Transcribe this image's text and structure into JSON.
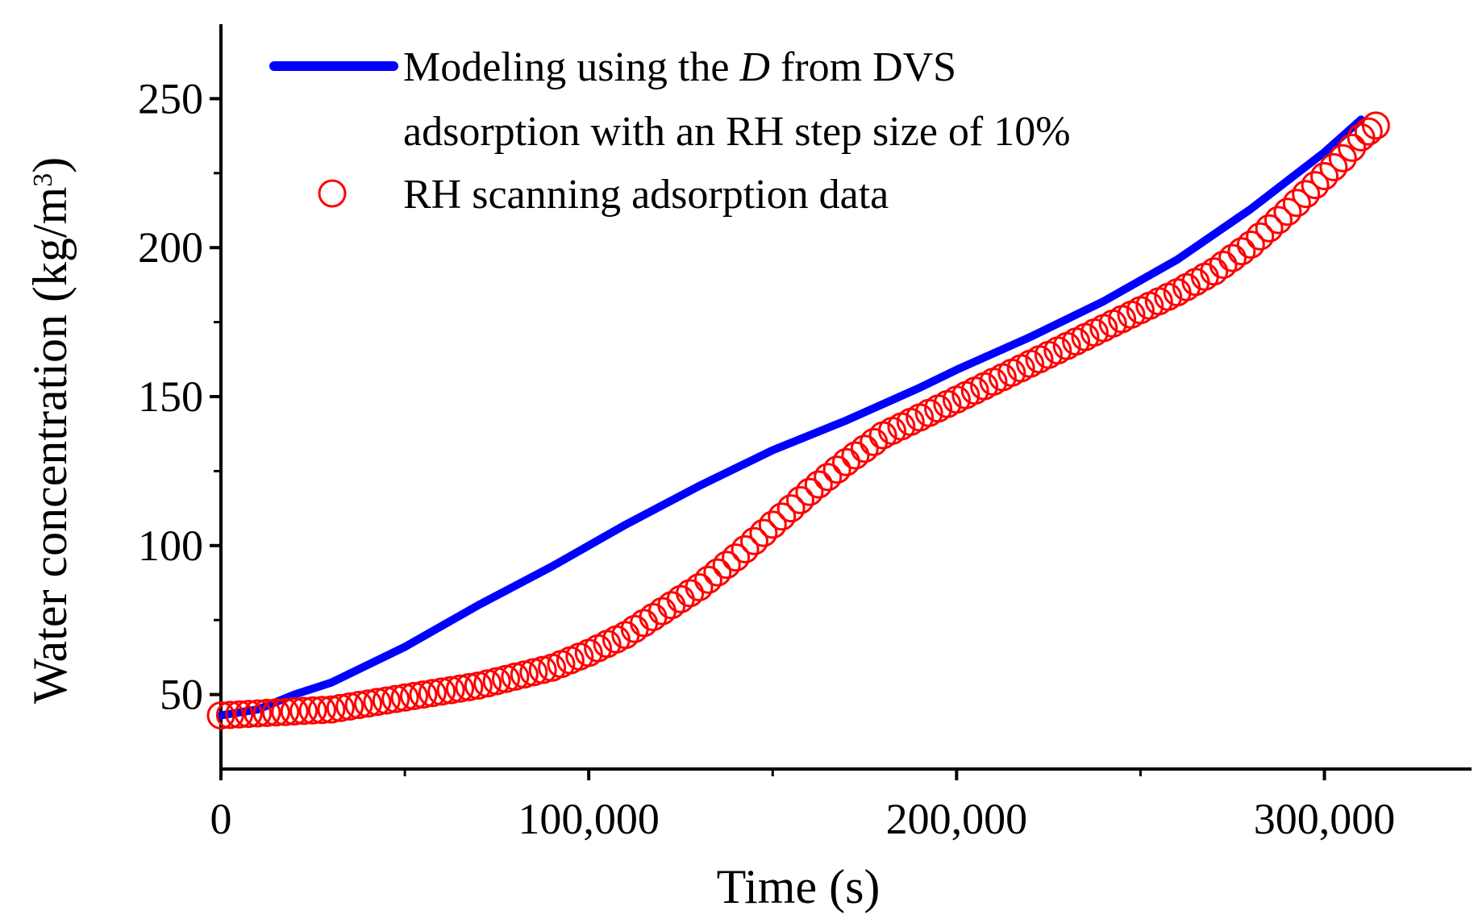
{
  "chart_data": {
    "type": "line",
    "title": "",
    "xlabel": "Time (s)",
    "ylabel_main": "Water concentration (kg/m",
    "ylabel_sup": "3",
    "ylabel_close": ")",
    "xlim": [
      0,
      340000
    ],
    "ylim": [
      25,
      275
    ],
    "x_ticks": [
      0,
      100000,
      200000,
      300000
    ],
    "x_tick_labels": [
      "0",
      "100,000",
      "200,000",
      "300,000"
    ],
    "x_minor_ticks": [
      50000,
      150000,
      250000
    ],
    "y_ticks": [
      50,
      100,
      150,
      200,
      250
    ],
    "y_tick_labels": [
      "50",
      "100",
      "150",
      "200",
      "250"
    ],
    "y_minor_ticks": [
      75,
      125,
      175,
      225
    ],
    "legend": {
      "placement": "top-left",
      "line1_pre": "Modeling using the ",
      "line1_italic": "D",
      "line1_post": " from DVS",
      "line2": "adsorption with an RH step size of 10%",
      "marker_label": "RH scanning adsorption data"
    },
    "series": [
      {
        "name": "Modeling using the D from DVS adsorption with an RH step size of 10%",
        "style": "line",
        "color": "#0000ff",
        "x": [
          0,
          10000,
          20000,
          30000,
          50000,
          70000,
          90000,
          110000,
          130000,
          150000,
          170000,
          190000,
          200000,
          220000,
          240000,
          260000,
          280000,
          300000,
          310000
        ],
        "y": [
          43,
          45,
          50,
          54,
          66,
          80,
          93,
          107,
          120,
          132,
          142,
          153,
          159,
          170,
          182,
          196,
          213,
          232,
          243
        ]
      },
      {
        "name": "RH scanning adsorption data",
        "style": "scatter",
        "marker": "open-circle",
        "color": "#ff0000",
        "x": [
          0,
          30000,
          50000,
          70000,
          90000,
          100000,
          110000,
          120000,
          130000,
          140000,
          150000,
          160000,
          170000,
          180000,
          190000,
          200000,
          210000,
          220000,
          230000,
          240000,
          250000,
          260000,
          270000,
          280000,
          290000,
          300000,
          305000,
          310000,
          314000
        ],
        "y": [
          43,
          45,
          49,
          53,
          59,
          64,
          70,
          78,
          86,
          96,
          107,
          118,
          128,
          137,
          143,
          149,
          155,
          161,
          167,
          173,
          179,
          185,
          192,
          201,
          212,
          224,
          230,
          237,
          241
        ]
      }
    ]
  },
  "colors": {
    "axis": "#000000",
    "model_line": "#0000ff",
    "data_marker": "#ff0000"
  }
}
